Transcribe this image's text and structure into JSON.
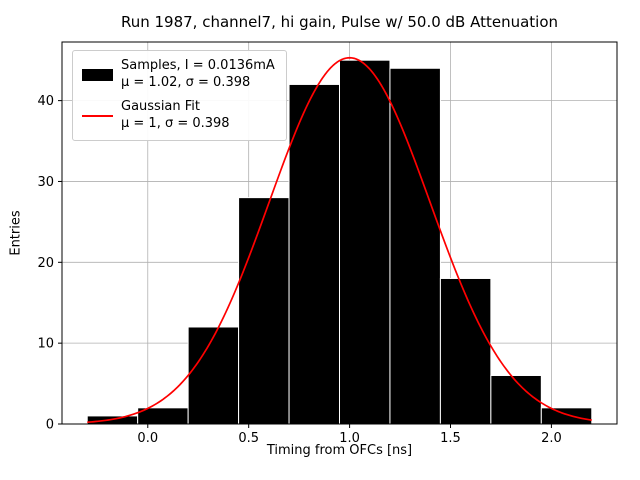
{
  "chart_data": {
    "type": "bar",
    "title": "Run 1987, channel7, hi gain, Pulse w/ 50.0 dB Attenuation",
    "xlabel": "Timing from OFCs [ns]",
    "ylabel": "Entries",
    "bin_edges": [
      -0.3,
      -0.05,
      0.2,
      0.45,
      0.7,
      0.95,
      1.2,
      1.45,
      1.7,
      1.95,
      2.2
    ],
    "values": [
      1,
      2,
      12,
      28,
      42,
      45,
      44,
      18,
      6,
      2
    ],
    "bar_color": "#000000",
    "fit": {
      "type": "gaussian",
      "mu": 1.0,
      "sigma": 0.398,
      "amplitude": 45.3,
      "range": [
        -0.3,
        2.2
      ],
      "color": "#ff0000"
    },
    "xlim": [
      -0.425,
      2.325
    ],
    "ylim": [
      0,
      47.25
    ],
    "xticks": [
      0.0,
      0.5,
      1.0,
      1.5,
      2.0
    ],
    "xtick_labels": [
      "0.0",
      "0.5",
      "1.0",
      "1.5",
      "2.0"
    ],
    "yticks": [
      0,
      10,
      20,
      30,
      40
    ],
    "ytick_labels": [
      "0",
      "10",
      "20",
      "30",
      "40"
    ],
    "grid": true,
    "grid_color": "#b0b0b0",
    "legend": {
      "position": "upper left",
      "entries": [
        {
          "swatch": "patch",
          "color": "#000000",
          "lines": [
            "Samples, I = 0.0136mA",
            "μ = 1.02, σ = 0.398"
          ]
        },
        {
          "swatch": "line",
          "color": "#ff0000",
          "lines": [
            "Gaussian Fit",
            "μ = 1, σ = 0.398"
          ]
        }
      ]
    }
  }
}
